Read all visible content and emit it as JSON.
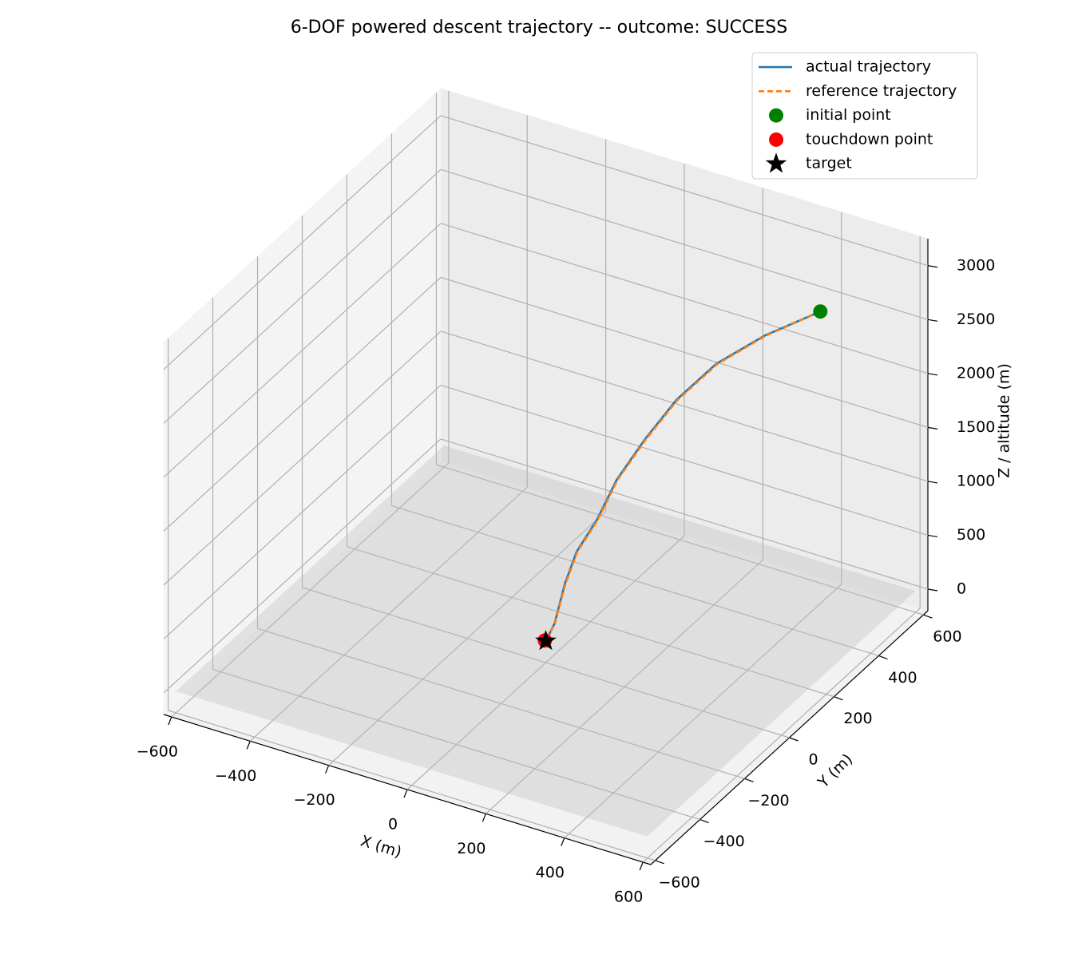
{
  "chart_data": {
    "type": "line3d",
    "title": "6-DOF powered descent trajectory -- outcome: SUCCESS",
    "xlabel": "X (m)",
    "ylabel": "Y (m)",
    "zlabel": "Z / altitude (m)",
    "xlim": [
      -620,
      620
    ],
    "ylim": [
      -620,
      620
    ],
    "zlim": [
      -200,
      3250
    ],
    "xticks": [
      {
        "value": -600,
        "label": "−600"
      },
      {
        "value": -400,
        "label": "−400"
      },
      {
        "value": -200,
        "label": "−200"
      },
      0,
      200,
      400,
      600
    ],
    "yticks": [
      {
        "value": -600,
        "label": "−600"
      },
      {
        "value": -400,
        "label": "−400"
      },
      {
        "value": -200,
        "label": "−200"
      },
      0,
      200,
      400,
      600
    ],
    "zticks": [
      0,
      500,
      1000,
      1500,
      2000,
      2500,
      3000
    ],
    "grid": true,
    "legend": "upper right",
    "series": [
      {
        "name": "actual trajectory",
        "color": "#1f77b4",
        "linestyle": "-",
        "x": [
          460,
          367,
          286,
          219,
          166,
          119,
          86,
          52,
          32,
          15,
          0
        ],
        "y": [
          420,
          335,
          261,
          200,
          151,
          109,
          78,
          47,
          29,
          13,
          0
        ],
        "z": [
          2775,
          2609,
          2398,
          2103,
          1768,
          1424,
          1074,
          799,
          513,
          155,
          0
        ]
      },
      {
        "name": "reference trajectory",
        "color": "#ff7f0e",
        "linestyle": "--",
        "x": [
          460,
          368,
          287,
          220,
          167,
          120,
          87,
          53,
          33,
          15,
          0
        ],
        "y": [
          420,
          336,
          262,
          201,
          152,
          110,
          79,
          48,
          30,
          14,
          0
        ],
        "z": [
          2775,
          2605,
          2392,
          2097,
          1762,
          1420,
          1070,
          795,
          510,
          152,
          0
        ]
      },
      {
        "name": "initial point",
        "color": "#008000",
        "marker": "o",
        "x": [
          460
        ],
        "y": [
          420
        ],
        "z": [
          2775
        ]
      },
      {
        "name": "touchdown point",
        "color": "#ff0000",
        "marker": "o",
        "x": [
          -3
        ],
        "y": [
          1
        ],
        "z": [
          0
        ]
      },
      {
        "name": "target",
        "color": "#000000",
        "marker": "*",
        "x": [
          0
        ],
        "y": [
          0
        ],
        "z": [
          0
        ]
      }
    ]
  }
}
